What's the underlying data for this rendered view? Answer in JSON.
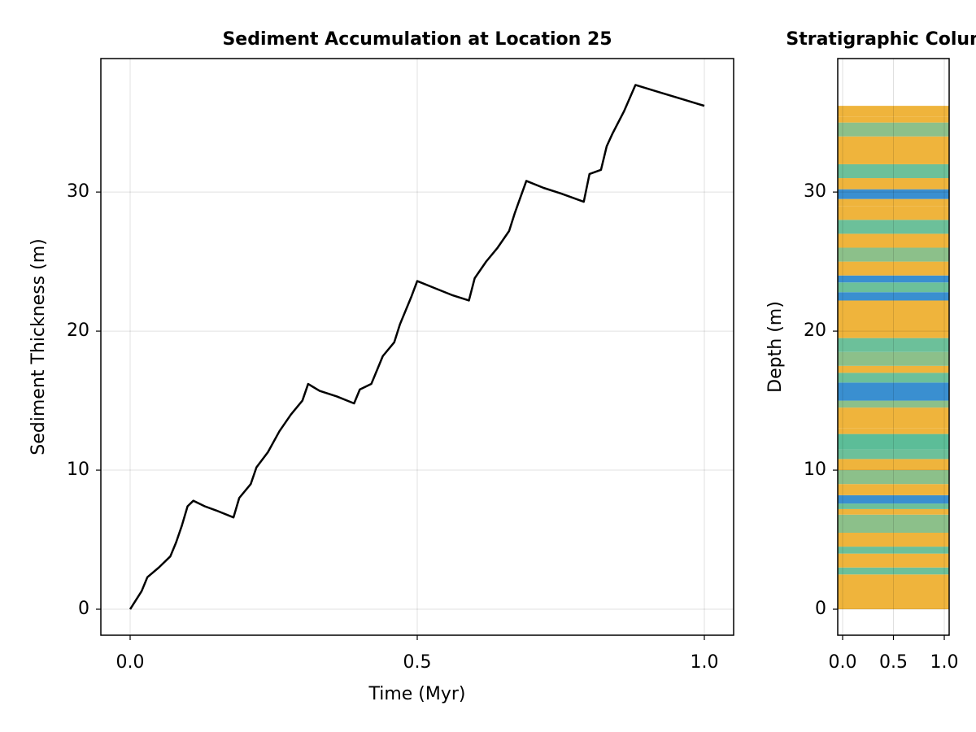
{
  "chart_data": [
    {
      "type": "line",
      "title": "Sediment Accumulation at Location 25",
      "x_label": "Time (Myr)",
      "y_label": "Sediment Thickness (m)",
      "xlim": [
        -0.051,
        1.051
      ],
      "ylim": [
        -1.87,
        39.6
      ],
      "xticks": [
        {
          "value": 0,
          "label": "0.0"
        },
        0.5,
        {
          "value": 1,
          "label": "1.0"
        }
      ],
      "yticks": [
        0,
        10,
        20,
        30
      ],
      "grid": true,
      "series": [
        {
          "color": "#000000",
          "x": [
            0,
            0.02,
            0.03,
            0.05,
            0.07,
            0.08,
            0.09,
            0.1,
            0.11,
            0.13,
            0.15,
            0.18,
            0.19,
            0.21,
            0.22,
            0.24,
            0.26,
            0.28,
            0.3,
            0.31,
            0.33,
            0.36,
            0.39,
            0.4,
            0.42,
            0.43,
            0.44,
            0.46,
            0.47,
            0.49,
            0.5,
            0.53,
            0.56,
            0.59,
            0.6,
            0.62,
            0.64,
            0.66,
            0.67,
            0.69,
            0.72,
            0.75,
            0.79,
            0.8,
            0.82,
            0.83,
            0.84,
            0.86,
            0.88,
            0.92,
            0.96,
            1.0
          ],
          "values": [
            0,
            1.3,
            2.3,
            3.0,
            3.8,
            4.8,
            6.0,
            7.4,
            7.8,
            7.4,
            7.1,
            6.6,
            8.0,
            9.0,
            10.2,
            11.3,
            12.8,
            14.0,
            15.0,
            16.2,
            15.7,
            15.3,
            14.8,
            15.8,
            16.2,
            17.2,
            18.2,
            19.2,
            20.5,
            22.5,
            23.6,
            23.1,
            22.6,
            22.2,
            23.8,
            25.0,
            26.0,
            27.2,
            28.5,
            30.8,
            30.3,
            29.9,
            29.3,
            31.3,
            31.6,
            33.3,
            34.2,
            35.8,
            37.7,
            37.2,
            36.7,
            36.2
          ]
        }
      ]
    },
    {
      "type": "strata",
      "title": "Stratigraphic Column",
      "y_label": "Depth (m)",
      "xlim": [
        -0.048,
        1.048
      ],
      "ylim": [
        -1.87,
        39.6
      ],
      "xticks": [
        {
          "value": 0,
          "label": "0.0"
        },
        0.5,
        {
          "value": 1,
          "label": "1.0"
        }
      ],
      "yticks": [
        0,
        10,
        20,
        30
      ],
      "grid": true,
      "boundaries": [
        0,
        2.5,
        3.0,
        4.0,
        4.5,
        5.5,
        6.8,
        7.2,
        7.6,
        8.2,
        9.0,
        10.0,
        10.8,
        11.5,
        12.6,
        13.0,
        14.5,
        15.0,
        16.3,
        17.0,
        17.5,
        18.5,
        19.5,
        21.0,
        22.2,
        22.8,
        23.5,
        24.0,
        25.0,
        26.0,
        27.0,
        28.0,
        29.0,
        29.5,
        30.2,
        31.0,
        32.0,
        34.0,
        35.0,
        35.4,
        36.2
      ],
      "layer_colors": [
        "#efb43c",
        "#6cc09a",
        "#efb43c",
        "#6cc09a",
        "#efb43c",
        "#8cc08a",
        "#efb43c",
        "#6cc09a",
        "#3a8fd0",
        "#efb43c",
        "#8cc08a",
        "#efb43c",
        "#6cc09a",
        "#5cbd98",
        "#efb43c",
        "#efb43c",
        "#8cc08a",
        "#3a8fd0",
        "#6cc09a",
        "#efb43c",
        "#8cc08a",
        "#6cc09a",
        "#efb43c",
        "#efb43c",
        "#3a8fd0",
        "#6cc09a",
        "#3a8fd0",
        "#efb43c",
        "#8cc08a",
        "#efb43c",
        "#6cc09a",
        "#efb43c",
        "#efb43c",
        "#3a8fd0",
        "#efb43c",
        "#6cc09a",
        "#efb43c",
        "#8cc08a",
        "#efb43c",
        "#efb43c"
      ]
    }
  ]
}
